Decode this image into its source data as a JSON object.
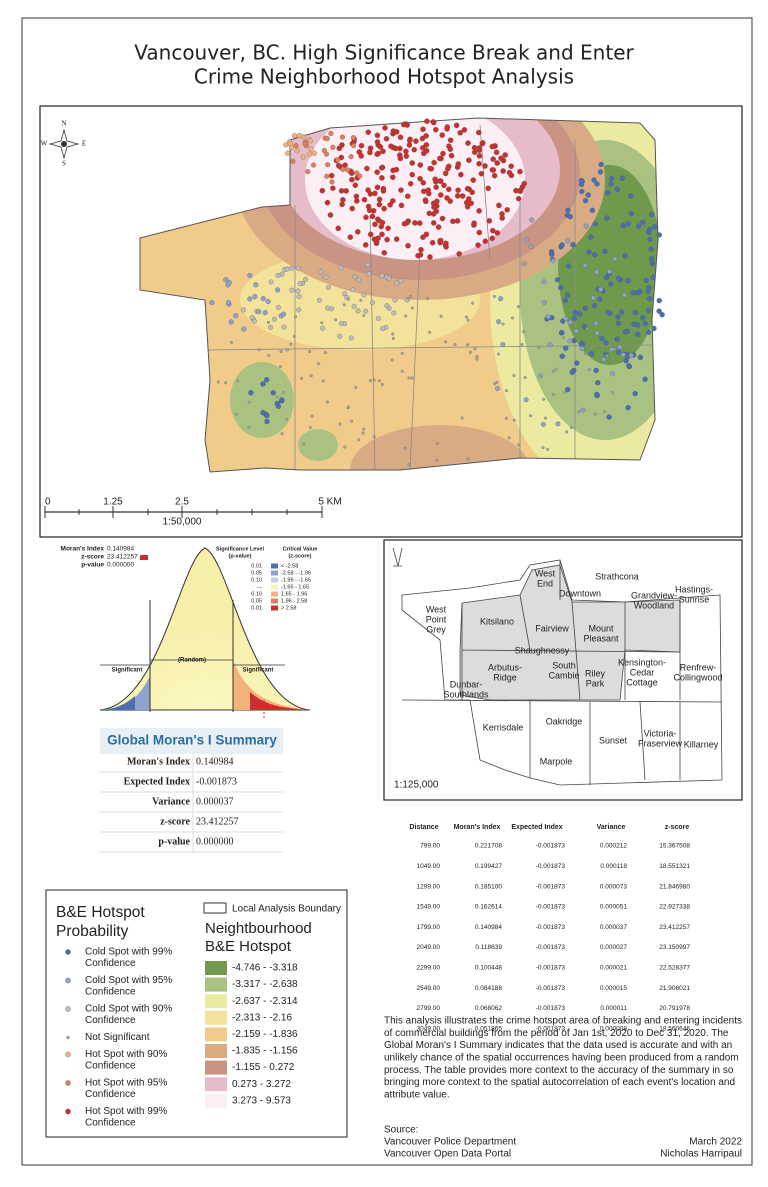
{
  "title": [
    "Vancouver, BC. High Significance Break and Enter",
    "Crime Neighborhood Hotspot Analysis"
  ],
  "hotspot_map": {
    "compass": [
      "N",
      "E",
      "S",
      "W"
    ],
    "scale_labels": [
      "0",
      "1.25",
      "2.5",
      "5 KM"
    ],
    "scale_ratio": "1:50,000"
  },
  "moran_chart": {
    "stats": [
      [
        "Moran's Index",
        "0.140984"
      ],
      [
        "z-score",
        "23.412257"
      ],
      [
        "p-value",
        "0.000000"
      ]
    ],
    "significance_header": [
      "Significance Level",
      "(p-value)"
    ],
    "critical_header": [
      "Critical Value",
      "(z-score)"
    ],
    "rows": [
      [
        "0.01",
        "< -2.58"
      ],
      [
        "0.05",
        "-2.58 - -1.96"
      ],
      [
        "0.10",
        "-1.96 - -1.65"
      ],
      [
        "---",
        "-1.65 - 1.65"
      ],
      [
        "0.10",
        "1.65 - 1.96"
      ],
      [
        "0.05",
        "1.96 - 2.58"
      ],
      [
        "0.01",
        "> 2.58"
      ]
    ],
    "row_colors": [
      "#4a6fb3",
      "#8ea3c9",
      "#c3cde0",
      "#f7f3c4",
      "#f2b27a",
      "#e0805a",
      "#c9302c"
    ],
    "labels": [
      "Significant",
      "(Random)",
      "Significant"
    ]
  },
  "summary_table": {
    "title": "Global Moran's I Summary",
    "rows": [
      [
        "Moran's Index",
        "0.140984"
      ],
      [
        "Expected Index",
        "-0.001873"
      ],
      [
        "Variance",
        "0.000037"
      ],
      [
        "z-score",
        "23.412257"
      ],
      [
        "p-value",
        "0.000000"
      ]
    ]
  },
  "neighbourhood_map": {
    "labels": [
      [
        "West",
        "End"
      ],
      [
        "Downtown"
      ],
      [
        "Strathcona"
      ],
      [
        "West",
        "Point",
        "Grey"
      ],
      [
        "Kitsilano"
      ],
      [
        "Fairview"
      ],
      [
        "Mount",
        "Pleasant"
      ],
      [
        "Grandview-",
        "Woodland"
      ],
      [
        "Hastings-",
        "Sunrise"
      ],
      [
        "Shaughnessy"
      ],
      [
        "Arbutus-",
        "Ridge"
      ],
      [
        "South",
        "Cambie"
      ],
      [
        "Riley",
        "Park"
      ],
      [
        "Kensington-",
        "Cedar",
        "Cottage"
      ],
      [
        "Renfrew-",
        "Collingwood"
      ],
      [
        "Dunbar-",
        "Southlands"
      ],
      [
        "Kerrisdale"
      ],
      [
        "Oakridge"
      ],
      [
        "Sunset"
      ],
      [
        "Victoria-",
        "Fraserview"
      ],
      [
        "Killarney"
      ],
      [
        "Marpole"
      ]
    ],
    "scale_ratio": "1:125,000"
  },
  "distance_table": {
    "header": [
      "Distance",
      "Moran's Index",
      "Expected Index",
      "Variance",
      "z-score"
    ],
    "rows": [
      [
        "799.00",
        "0.221708",
        "-0.001873",
        "0.000212",
        "15.367508"
      ],
      [
        "1049.00",
        "0.199427",
        "-0.001873",
        "0.000118",
        "18.551321"
      ],
      [
        "1299.00",
        "0.185100",
        "-0.001873",
        "0.000073",
        "21.846980"
      ],
      [
        "1549.00",
        "0.162614",
        "-0.001873",
        "0.000051",
        "22.927338"
      ],
      [
        "1799.00",
        "0.140984",
        "-0.001873",
        "0.000037",
        "23.412257"
      ],
      [
        "2049.00",
        "0.118639",
        "-0.001873",
        "0.000027",
        "23.150997"
      ],
      [
        "2299.00",
        "0.100448",
        "-0.001873",
        "0.000021",
        "22.528377"
      ],
      [
        "2549.00",
        "0.084188",
        "-0.001873",
        "0.000015",
        "21.906021"
      ],
      [
        "2799.00",
        "0.068062",
        "-0.001873",
        "0.000011",
        "20.791978"
      ],
      [
        "3049.00",
        "0.051865",
        "-0.001873",
        "0.000008",
        "18.560646"
      ]
    ]
  },
  "legend": {
    "title": [
      "B&E Hotspot",
      "Probability"
    ],
    "items": [
      {
        "label": [
          "Cold Spot with 99%",
          "Confidence"
        ],
        "color": "#4a6fb3"
      },
      {
        "label": [
          "Cold Spot with 95%",
          "Confidence"
        ],
        "color": "#8ea3c9"
      },
      {
        "label": [
          "Cold Spot with 90%",
          "Confidence"
        ],
        "color": "#bdbdbd"
      },
      {
        "label": [
          "Not Significant"
        ],
        "color": "#a8a8a8"
      },
      {
        "label": [
          "Hot Spot with 90%",
          "Confidence"
        ],
        "color": "#f2b27a"
      },
      {
        "label": [
          "Hot Spot with 95%",
          "Confidence"
        ],
        "color": "#e0805a"
      },
      {
        "label": [
          "Hot Spot with 99%",
          "Confidence"
        ],
        "color": "#c9302c"
      }
    ],
    "boundary_label": "Local Analysis Boundary",
    "surface_title": [
      "Neightbourhood",
      "B&E Hotspot"
    ],
    "ranges": [
      {
        "label": "-4.746 - -3.318",
        "color": "#6f9a4e"
      },
      {
        "label": "-3.317 - -2.638",
        "color": "#a9c281"
      },
      {
        "label": "-2.637 - -2.314",
        "color": "#ebeaa0"
      },
      {
        "label": "-2.313 - -2.16",
        "color": "#f2e29a"
      },
      {
        "label": "-2.159 - -1.836",
        "color": "#f0cb8a"
      },
      {
        "label": "-1.835 - -1.156",
        "color": "#d9ab85"
      },
      {
        "label": "-1.155 - 0.272",
        "color": "#c99483"
      },
      {
        "label": "0.273 - 3.272",
        "color": "#e6bccb"
      },
      {
        "label": "3.273 - 9.573",
        "color": "#fbeef5"
      }
    ]
  },
  "description": [
    "This analysis illustrates the crime hotspot area of breaking and entering incidents",
    "of commercial buildings from the period of Jan 1st, 2020 to Dec 31, 2020. The",
    "Global Moran's I Summary indicates that the data used is accurate and with an",
    "unlikely chance of the spatial occurrences having been produced from a random",
    "process.  The table provides more context to the accuracy of the summary in so",
    "bringing more context to the spatial autocorrelation of each event's location and",
    "attribute value."
  ],
  "footer": {
    "source": [
      "Source:",
      "Vancouver Police Department",
      "Vancouver Open Data Portal"
    ],
    "date": "March 2022",
    "author": "Nicholas Harripaul"
  }
}
